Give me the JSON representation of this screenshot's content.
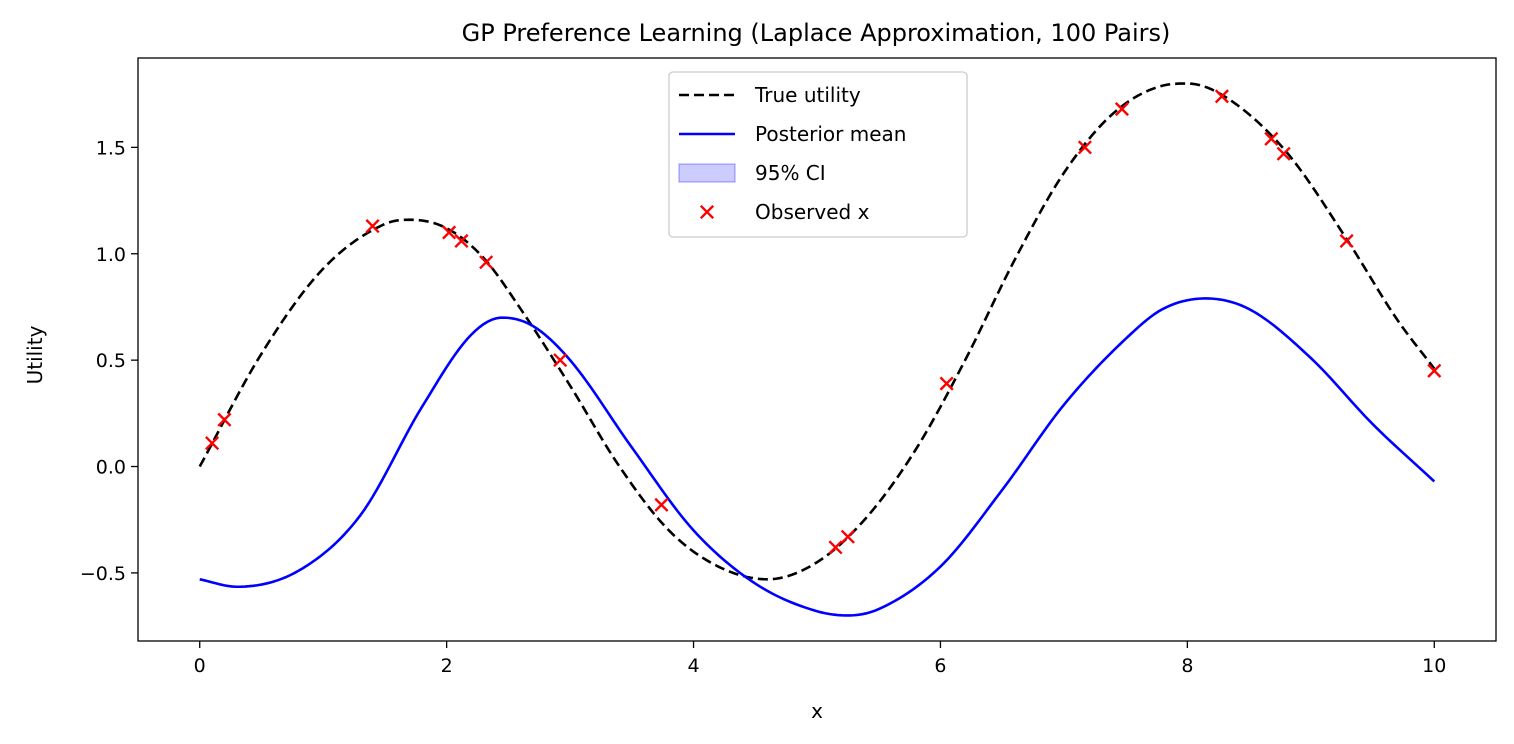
{
  "chart_data": {
    "type": "line",
    "title": "GP Preference Learning (Laplace Approximation, 100 Pairs)",
    "xlabel": "x",
    "ylabel": "Utility",
    "xlim": [
      -0.5,
      10.5
    ],
    "ylim": [
      -0.82,
      1.92
    ],
    "xticks": [
      0,
      2,
      4,
      6,
      8,
      10
    ],
    "xtick_labels": [
      "0",
      "2",
      "4",
      "6",
      "8",
      "10"
    ],
    "yticks": [
      -0.5,
      0.0,
      0.5,
      1.0,
      1.5
    ],
    "ytick_labels": [
      "−0.5",
      "0.0",
      "0.5",
      "1.0",
      "1.5"
    ],
    "grid": false,
    "legend_position": "top-center",
    "legend": [
      {
        "label": "True utility",
        "kind": "dashed-line",
        "color": "#000000"
      },
      {
        "label": "Posterior mean",
        "kind": "line",
        "color": "#0000ff"
      },
      {
        "label": "95% CI",
        "kind": "band",
        "color": "#0000ff"
      },
      {
        "label": "Observed x",
        "kind": "x-marker",
        "color": "#ff0000"
      }
    ],
    "series": [
      {
        "name": "True utility",
        "style": "dashed",
        "color": "#000000",
        "x": [
          0,
          0.5,
          1.0,
          1.5,
          1.7,
          2.0,
          2.3,
          2.6,
          3.0,
          3.4,
          3.8,
          4.2,
          4.6,
          5.0,
          5.4,
          5.8,
          6.2,
          6.6,
          7.0,
          7.4,
          7.8,
          8.0,
          8.3,
          8.8,
          9.3,
          9.7,
          10.0
        ],
        "y": [
          0.0,
          0.53,
          0.93,
          1.14,
          1.16,
          1.12,
          0.98,
          0.74,
          0.38,
          0.0,
          -0.3,
          -0.47,
          -0.53,
          -0.45,
          -0.24,
          0.08,
          0.5,
          0.97,
          1.38,
          1.66,
          1.79,
          1.8,
          1.74,
          1.48,
          1.06,
          0.69,
          0.46
        ]
      },
      {
        "name": "Posterior mean",
        "style": "solid",
        "color": "#0000ff",
        "x": [
          0,
          0.3,
          0.8,
          1.3,
          1.8,
          2.2,
          2.45,
          2.7,
          3.0,
          3.5,
          4.0,
          4.5,
          5.0,
          5.25,
          5.5,
          6.0,
          6.5,
          7.0,
          7.5,
          7.8,
          8.15,
          8.5,
          9.0,
          9.5,
          10.0
        ],
        "y": [
          -0.53,
          -0.565,
          -0.49,
          -0.23,
          0.28,
          0.62,
          0.7,
          0.66,
          0.5,
          0.09,
          -0.3,
          -0.55,
          -0.68,
          -0.7,
          -0.67,
          -0.47,
          -0.11,
          0.29,
          0.6,
          0.74,
          0.79,
          0.74,
          0.51,
          0.2,
          -0.07
        ]
      }
    ],
    "scatter": {
      "name": "Observed x",
      "marker": "x",
      "color": "#ff0000",
      "x": [
        0.1,
        0.2,
        1.4,
        2.02,
        2.12,
        2.32,
        2.92,
        3.74,
        5.15,
        5.25,
        6.05,
        7.17,
        7.47,
        8.28,
        8.68,
        8.78,
        9.29,
        10.0
      ],
      "y": [
        0.11,
        0.22,
        1.13,
        1.1,
        1.06,
        0.96,
        0.5,
        -0.18,
        -0.38,
        -0.33,
        0.39,
        1.5,
        1.68,
        1.74,
        1.54,
        1.47,
        1.06,
        0.45
      ]
    }
  }
}
